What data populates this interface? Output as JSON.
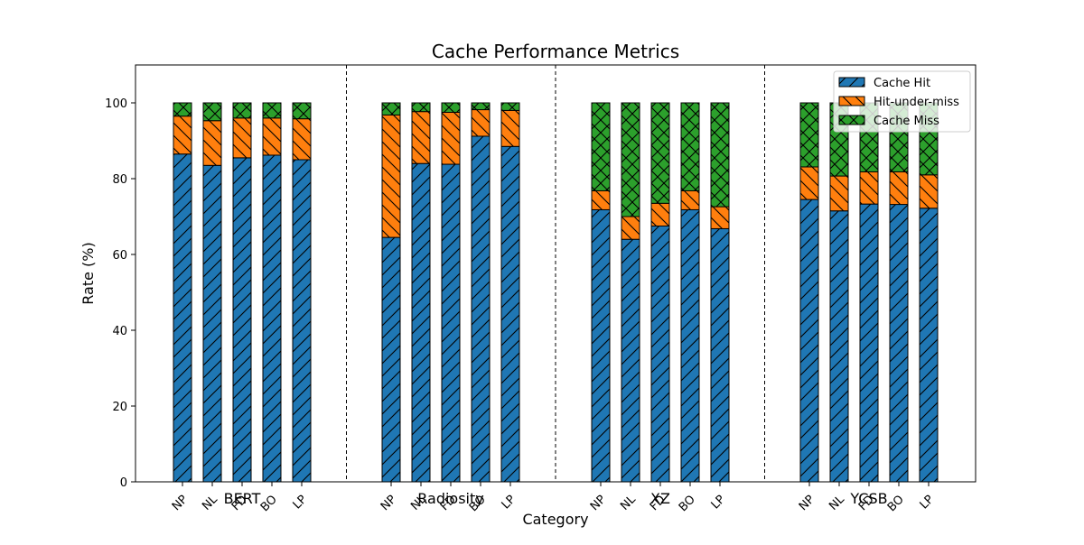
{
  "chart_data": {
    "type": "bar",
    "stacked": true,
    "title": "Cache Performance Metrics",
    "xlabel": "Category",
    "ylabel": "Rate (%)",
    "ylim": [
      0,
      110
    ],
    "yticks": [
      0,
      20,
      40,
      60,
      80,
      100
    ],
    "grid": false,
    "legend_position": "top-right",
    "groups": [
      "BERT",
      "Radiosity",
      "XZ",
      "YCSB"
    ],
    "categories": [
      "NP",
      "NL",
      "FD",
      "BO",
      "LP"
    ],
    "series": [
      {
        "name": "Cache Hit",
        "color": "#1f77b4",
        "hatch": "diagonal",
        "values": [
          [
            86.5,
            83.5,
            85.5,
            86.2,
            85.0
          ],
          [
            64.5,
            84.0,
            83.8,
            91.2,
            88.5
          ],
          [
            71.8,
            64.0,
            67.5,
            71.8,
            66.8
          ],
          [
            74.5,
            71.5,
            73.3,
            73.2,
            72.2
          ]
        ]
      },
      {
        "name": "Hit-under-miss",
        "color": "#ff7f0e",
        "hatch": "back-diagonal",
        "values": [
          [
            10.0,
            11.8,
            10.5,
            9.8,
            10.8
          ],
          [
            32.3,
            13.7,
            13.7,
            7.0,
            9.5
          ],
          [
            5.0,
            6.0,
            6.0,
            5.0,
            5.8
          ],
          [
            8.6,
            9.2,
            8.5,
            8.6,
            8.8
          ]
        ]
      },
      {
        "name": "Cache Miss",
        "color": "#2ca02c",
        "hatch": "crosshatch",
        "values": [
          [
            3.5,
            4.7,
            4.0,
            4.0,
            4.2
          ],
          [
            3.2,
            2.3,
            2.5,
            1.8,
            2.0
          ],
          [
            23.2,
            30.0,
            26.5,
            23.2,
            27.4
          ],
          [
            16.9,
            19.3,
            18.2,
            18.2,
            19.0
          ]
        ]
      }
    ]
  }
}
